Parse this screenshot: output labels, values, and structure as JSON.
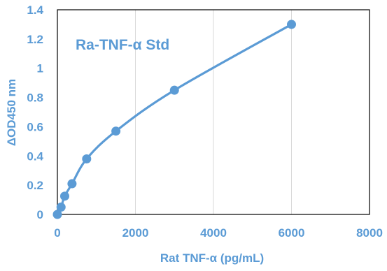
{
  "chart_data": {
    "type": "scatter",
    "title": "",
    "annotation": "Ra-TNF-α Std",
    "xlabel": "Rat TNF-α (pg/mL)",
    "ylabel": "ΔOD450 nm",
    "xlim": [
      0,
      8000
    ],
    "ylim": [
      0,
      1.4
    ],
    "x_ticks": [
      0,
      2000,
      4000,
      6000,
      8000
    ],
    "y_ticks": [
      0,
      0.2,
      0.4,
      0.6,
      0.8,
      1,
      1.2,
      1.4
    ],
    "x_tick_labels": [
      "0",
      "2000",
      "4000",
      "6000",
      "8000"
    ],
    "y_tick_labels": [
      "0",
      "0.2",
      "0.4",
      "0.6",
      "0.8",
      "1",
      "1.2",
      "1.4"
    ],
    "grid": "vertical",
    "legend": "none",
    "series": [
      {
        "x": [
          0,
          94,
          188,
          375,
          750,
          1500,
          3000,
          6000
        ],
        "y": [
          0,
          0.05,
          0.125,
          0.21,
          0.38,
          0.57,
          0.85,
          1.3
        ]
      }
    ],
    "colors": {
      "series": "#5B9BD5",
      "text": "#5B9BD5",
      "plot_border": "#000000",
      "grid": "#D9D9D9"
    }
  }
}
